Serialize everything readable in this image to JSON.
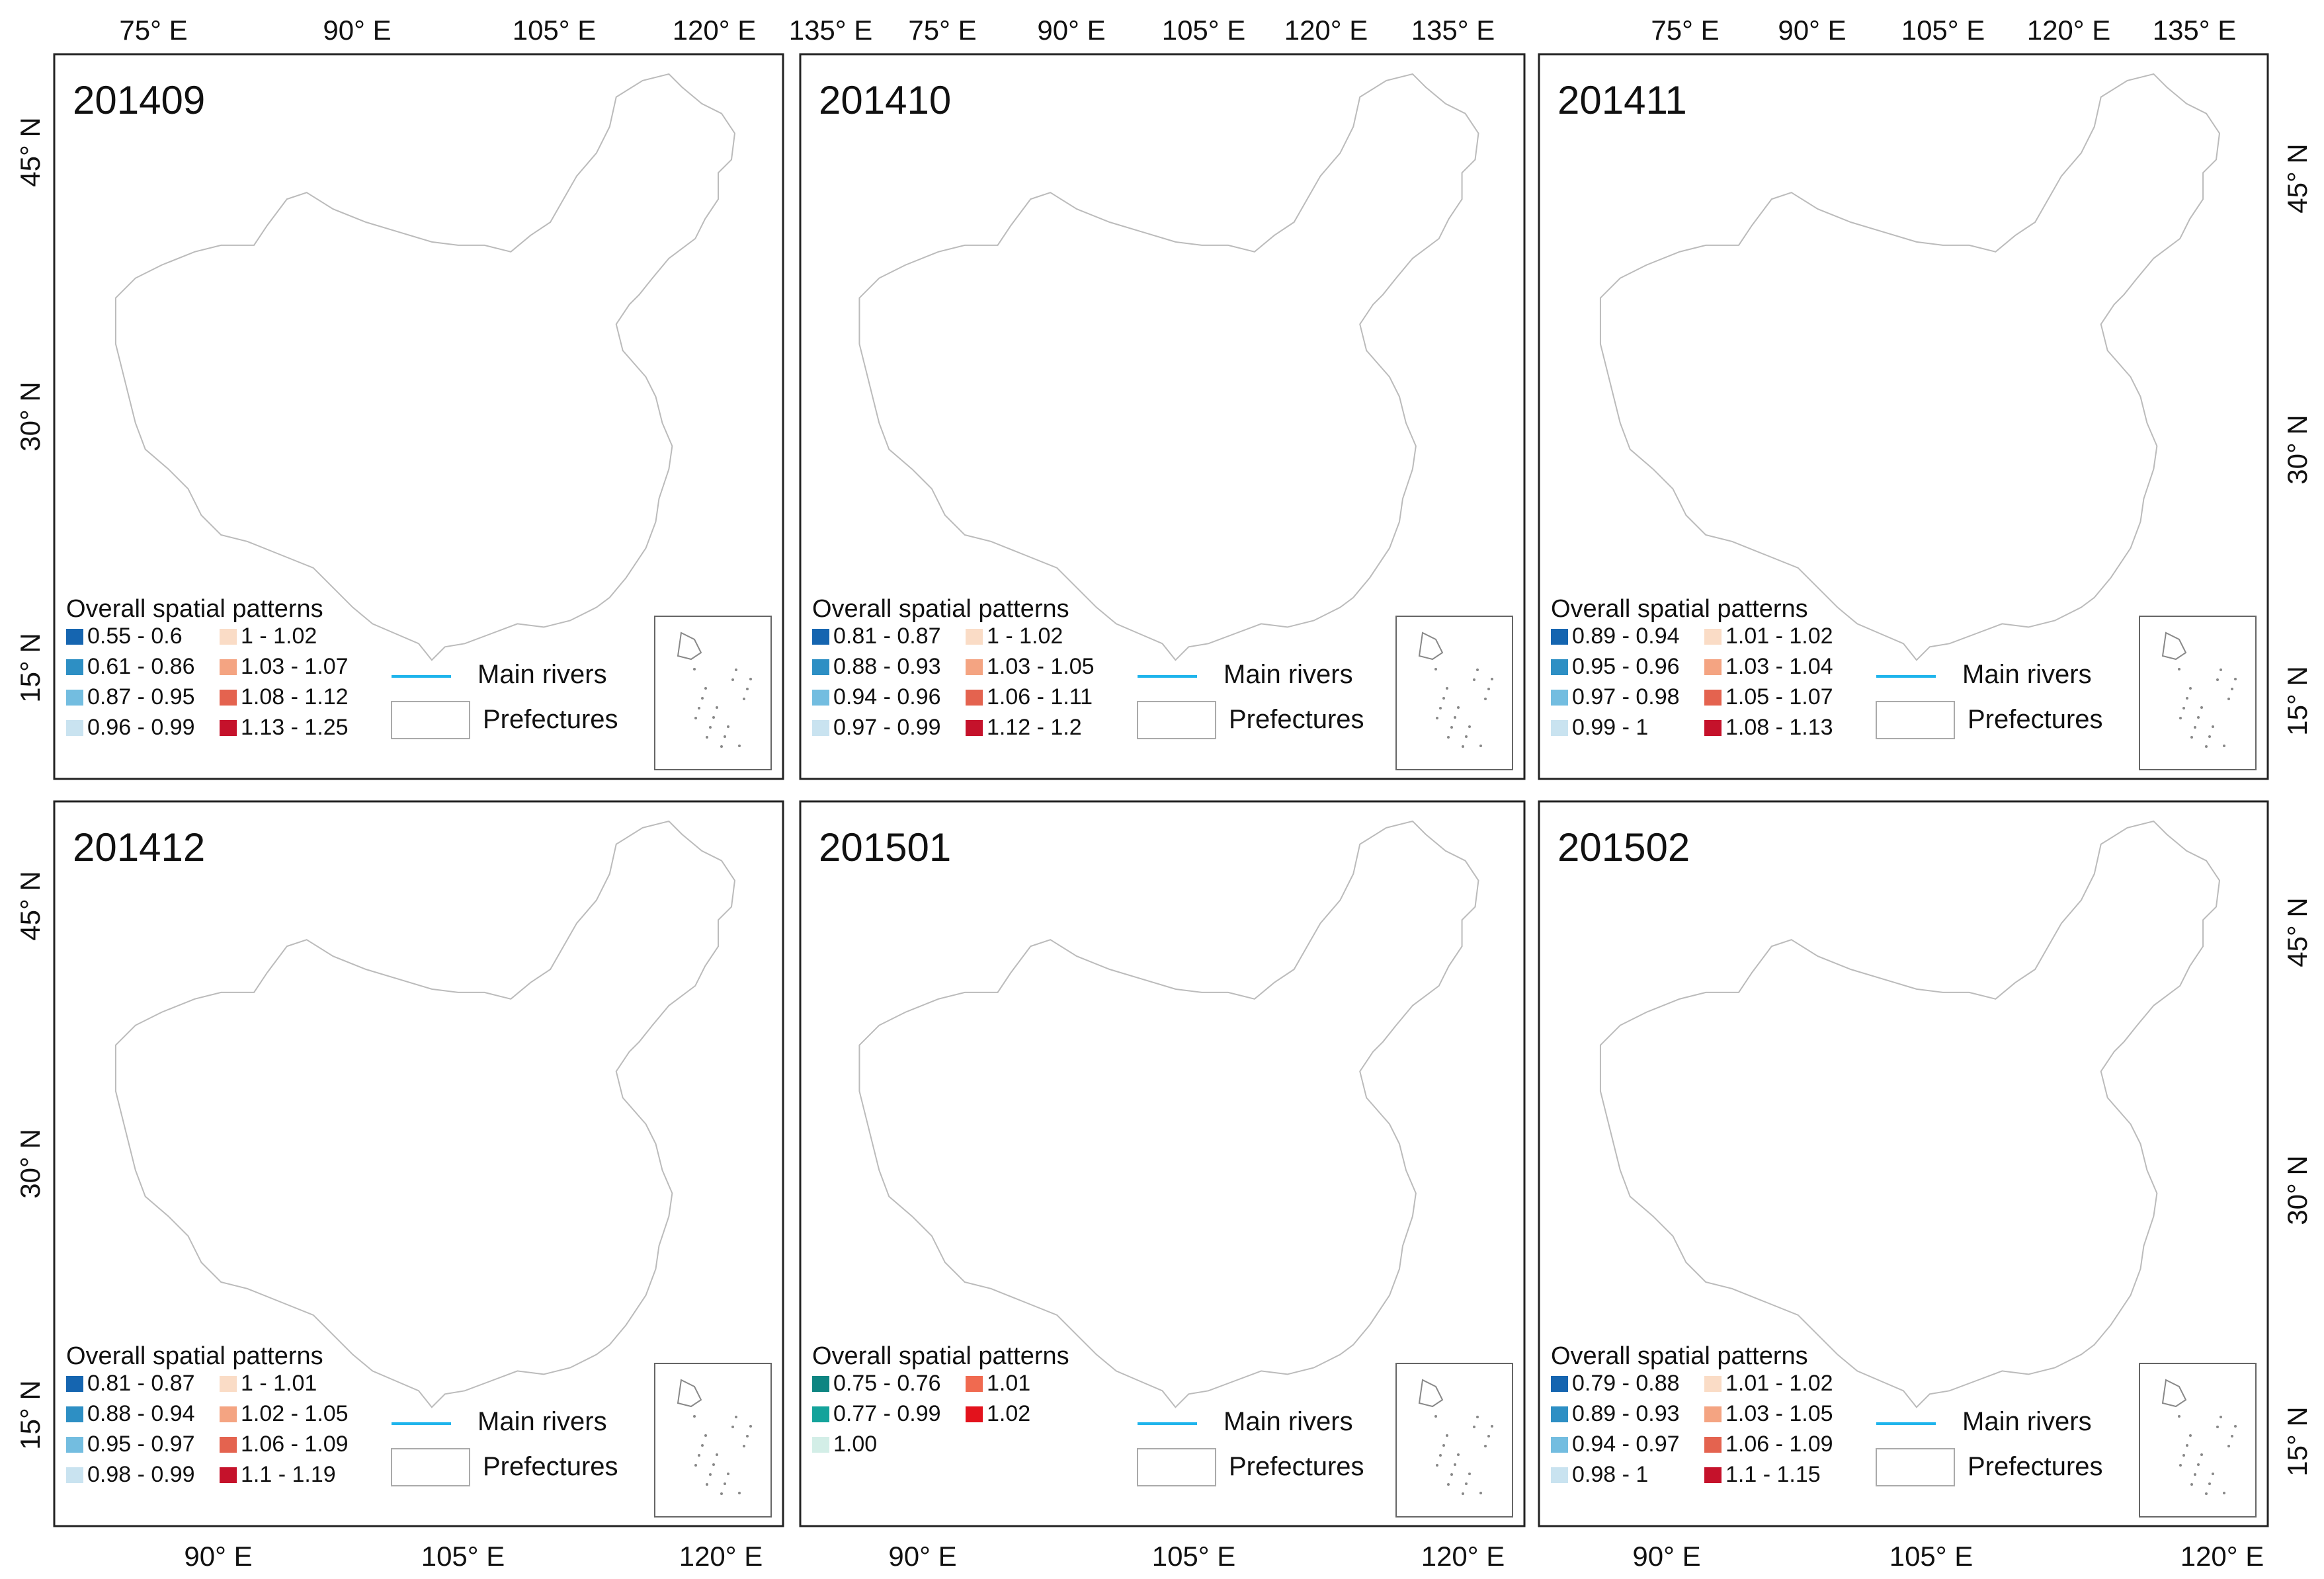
{
  "figure": {
    "top_axis_labels": [
      "75° E",
      "90° E",
      "105° E",
      "120° E",
      "135° E"
    ],
    "bottom_axis_labels": [
      "90° E",
      "105° E",
      "120° E"
    ],
    "left_axis_labels": [
      "45° N",
      "30° N",
      "15° N"
    ],
    "right_axis_labels": [
      "45° N",
      "30° N",
      "15° N"
    ],
    "legend_common": {
      "title": "Overall spatial patterns",
      "rivers_label": "Main rivers",
      "prefectures_label": "Prefectures",
      "river_color": "#1eb4ec"
    }
  },
  "chart_data": [
    {
      "type": "choropleth",
      "title": "201409",
      "classes": [
        {
          "label": "0.55 - 0.6",
          "color": "#1565b0"
        },
        {
          "label": "0.61 - 0.86",
          "color": "#2d8fc4"
        },
        {
          "label": "0.87 - 0.95",
          "color": "#73bde0"
        },
        {
          "label": "0.96 - 0.99",
          "color": "#c9e3f0"
        },
        {
          "label": "1 - 1.02",
          "color": "#fadcc6"
        },
        {
          "label": "1.03 - 1.07",
          "color": "#f4a482"
        },
        {
          "label": "1.08 - 1.12",
          "color": "#e4634f"
        },
        {
          "label": "1.13 - 1.25",
          "color": "#c5122b"
        }
      ]
    },
    {
      "type": "choropleth",
      "title": "201410",
      "classes": [
        {
          "label": "0.81 - 0.87",
          "color": "#1565b0"
        },
        {
          "label": "0.88 - 0.93",
          "color": "#2d8fc4"
        },
        {
          "label": "0.94 - 0.96",
          "color": "#73bde0"
        },
        {
          "label": "0.97 - 0.99",
          "color": "#c9e3f0"
        },
        {
          "label": "1 - 1.02",
          "color": "#fadcc6"
        },
        {
          "label": "1.03 - 1.05",
          "color": "#f4a482"
        },
        {
          "label": "1.06 - 1.11",
          "color": "#e4634f"
        },
        {
          "label": "1.12 - 1.2",
          "color": "#c5122b"
        }
      ]
    },
    {
      "type": "choropleth",
      "title": "201411",
      "classes": [
        {
          "label": "0.89 - 0.94",
          "color": "#1565b0"
        },
        {
          "label": "0.95 - 0.96",
          "color": "#2d8fc4"
        },
        {
          "label": "0.97 - 0.98",
          "color": "#73bde0"
        },
        {
          "label": "0.99 - 1",
          "color": "#c9e3f0"
        },
        {
          "label": "1.01 - 1.02",
          "color": "#fadcc6"
        },
        {
          "label": "1.03 - 1.04",
          "color": "#f4a482"
        },
        {
          "label": "1.05 - 1.07",
          "color": "#e4634f"
        },
        {
          "label": "1.08 - 1.13",
          "color": "#c5122b"
        }
      ]
    },
    {
      "type": "choropleth",
      "title": "201412",
      "classes": [
        {
          "label": "0.81 - 0.87",
          "color": "#1565b0"
        },
        {
          "label": "0.88 - 0.94",
          "color": "#2d8fc4"
        },
        {
          "label": "0.95 - 0.97",
          "color": "#73bde0"
        },
        {
          "label": "0.98 - 0.99",
          "color": "#c9e3f0"
        },
        {
          "label": "1 - 1.01",
          "color": "#fadcc6"
        },
        {
          "label": "1.02 - 1.05",
          "color": "#f4a482"
        },
        {
          "label": "1.06 - 1.09",
          "color": "#e4634f"
        },
        {
          "label": "1.1 - 1.19",
          "color": "#c5122b"
        }
      ]
    },
    {
      "type": "choropleth",
      "title": "201501",
      "classes": [
        {
          "label": "0.75 - 0.76",
          "color": "#0e8582"
        },
        {
          "label": "0.77 - 0.99",
          "color": "#14a39b"
        },
        {
          "label": "1.00",
          "color": "#d3eee7"
        },
        {
          "label": "1.01",
          "color": "#f06a50"
        },
        {
          "label": "1.02",
          "color": "#e3121c"
        }
      ]
    },
    {
      "type": "choropleth",
      "title": "201502",
      "classes": [
        {
          "label": "0.79 - 0.88",
          "color": "#1565b0"
        },
        {
          "label": "0.89 - 0.93",
          "color": "#2d8fc4"
        },
        {
          "label": "0.94 - 0.97",
          "color": "#73bde0"
        },
        {
          "label": "0.98 - 1",
          "color": "#c9e3f0"
        },
        {
          "label": "1.01 - 1.02",
          "color": "#fadcc6"
        },
        {
          "label": "1.03 - 1.05",
          "color": "#f4a482"
        },
        {
          "label": "1.06 - 1.09",
          "color": "#e4634f"
        },
        {
          "label": "1.1 - 1.15",
          "color": "#c5122b"
        }
      ]
    }
  ]
}
